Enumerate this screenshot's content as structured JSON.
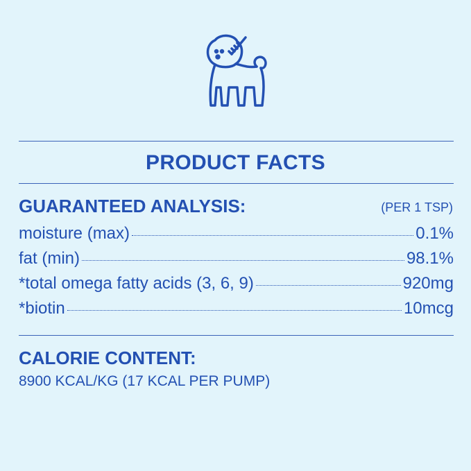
{
  "icon": "dog-with-brush-icon",
  "title": "PRODUCT FACTS",
  "analysis": {
    "heading": "GUARANTEED ANALYSIS:",
    "per": "(PER 1 TSP)",
    "rows": [
      {
        "label": "moisture (max)",
        "value": "0.1%"
      },
      {
        "label": "fat (min)",
        "value": "98.1%"
      },
      {
        "label": "*total omega fatty acids (3, 6, 9)",
        "value": "920mg"
      },
      {
        "label": "*biotin",
        "value": "10mcg"
      }
    ]
  },
  "calorie": {
    "heading": "CALORIE CONTENT:",
    "value": "8900 KCAL/KG (17 KCAL PER PUMP)"
  },
  "colors": {
    "background": "#e2f4fb",
    "text": "#2350b2"
  }
}
